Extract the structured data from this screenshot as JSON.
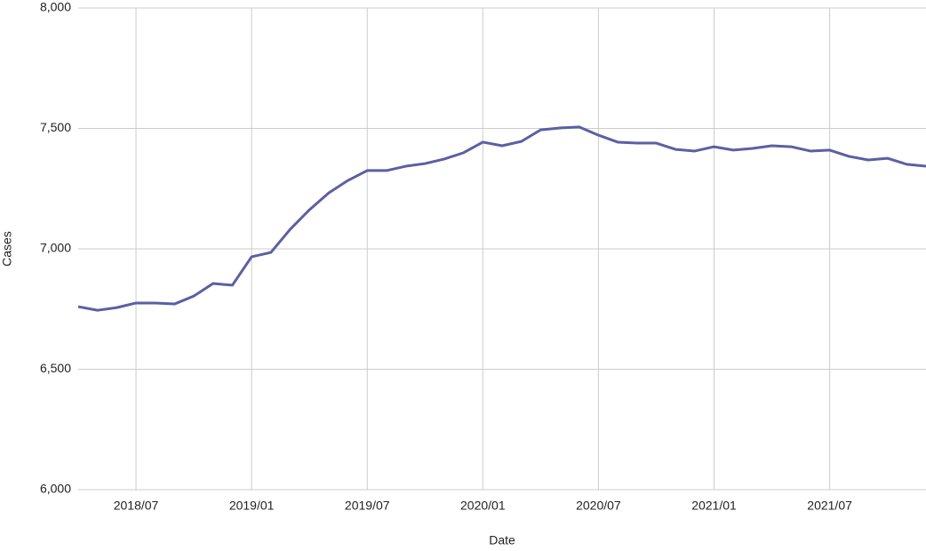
{
  "chart_data": {
    "type": "line",
    "x_label": "Date",
    "y_label": "Cases",
    "x": [
      "2018/04",
      "2018/05",
      "2018/06",
      "2018/07",
      "2018/08",
      "2018/09",
      "2018/10",
      "2018/11",
      "2018/12",
      "2019/01",
      "2019/02",
      "2019/03",
      "2019/04",
      "2019/05",
      "2019/06",
      "2019/07",
      "2019/08",
      "2019/09",
      "2019/10",
      "2019/11",
      "2019/12",
      "2020/01",
      "2020/02",
      "2020/03",
      "2020/04",
      "2020/05",
      "2020/06",
      "2020/07",
      "2020/08",
      "2020/09",
      "2020/10",
      "2020/11",
      "2020/12",
      "2021/01",
      "2021/02",
      "2021/03",
      "2021/04",
      "2021/05",
      "2021/06",
      "2021/07",
      "2021/08",
      "2021/09",
      "2021/10",
      "2021/11",
      "2021/12"
    ],
    "series": [
      {
        "name": "Cases",
        "color": "#5c5fa3",
        "values": [
          6760,
          6745,
          6756,
          6775,
          6775,
          6771,
          6804,
          6856,
          6849,
          6967,
          6985,
          7081,
          7162,
          7232,
          7284,
          7325,
          7325,
          7343,
          7354,
          7373,
          7399,
          7443,
          7428,
          7446,
          7494,
          7502,
          7506,
          7472,
          7443,
          7439,
          7439,
          7413,
          7406,
          7424,
          7410,
          7417,
          7428,
          7424,
          7406,
          7410,
          7384,
          7369,
          7376,
          7351,
          7343
        ]
      }
    ],
    "xticks": [
      "2018/07",
      "2019/01",
      "2019/07",
      "2020/01",
      "2020/07",
      "2021/01",
      "2021/07"
    ],
    "ylim": [
      6000,
      8000
    ],
    "yticks": [
      {
        "value": 6000,
        "label": "6,000"
      },
      {
        "value": 6500,
        "label": "6,500"
      },
      {
        "value": 7000,
        "label": "7,000"
      },
      {
        "value": 7500,
        "label": "7,500"
      },
      {
        "value": 8000,
        "label": "8,000"
      }
    ],
    "grid": true
  }
}
